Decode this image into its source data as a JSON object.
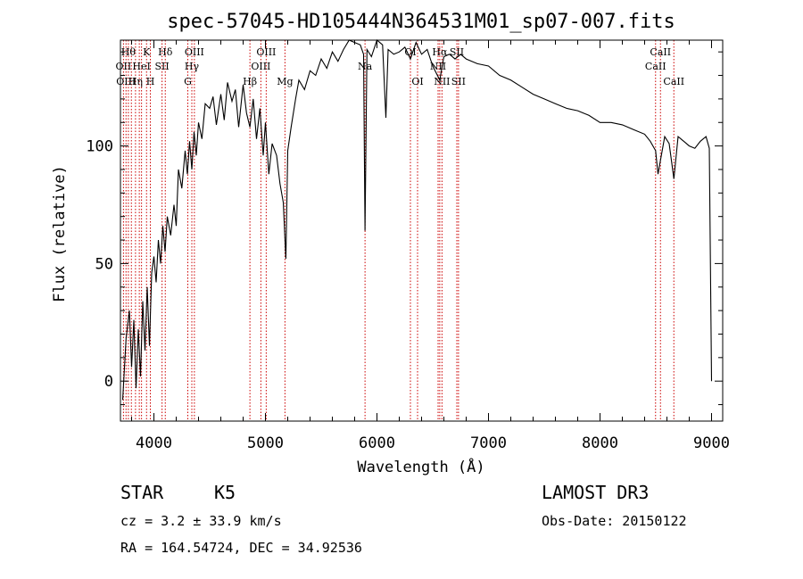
{
  "chart_data": {
    "type": "line",
    "title": "spec-57045-HD105444N364531M01_sp07-007.fits",
    "xlabel": "Wavelength (Å)",
    "ylabel": "Flux (relative)",
    "xlim": [
      3700,
      9100
    ],
    "ylim": [
      -17,
      145
    ],
    "xticks": [
      {
        "value": 4000,
        "label": "4000"
      },
      {
        "value": 5000,
        "label": "5000"
      },
      {
        "value": 6000,
        "label": "6000"
      },
      {
        "value": 7000,
        "label": "7000"
      },
      {
        "value": 8000,
        "label": "8000"
      },
      {
        "value": 9000,
        "label": "9000"
      }
    ],
    "yticks": [
      {
        "value": 0,
        "label": "0"
      },
      {
        "value": 50,
        "label": "50"
      },
      {
        "value": 100,
        "label": "100"
      }
    ],
    "series": [
      {
        "name": "spectrum",
        "x": [
          3720,
          3750,
          3780,
          3800,
          3820,
          3840,
          3860,
          3880,
          3900,
          3920,
          3940,
          3960,
          3980,
          4000,
          4020,
          4040,
          4060,
          4080,
          4100,
          4120,
          4150,
          4180,
          4200,
          4220,
          4250,
          4280,
          4300,
          4320,
          4340,
          4360,
          4380,
          4400,
          4430,
          4460,
          4500,
          4530,
          4560,
          4600,
          4630,
          4660,
          4700,
          4730,
          4760,
          4800,
          4830,
          4861,
          4890,
          4920,
          4950,
          4980,
          5000,
          5030,
          5060,
          5100,
          5130,
          5160,
          5183,
          5200,
          5230,
          5270,
          5300,
          5350,
          5400,
          5450,
          5500,
          5550,
          5600,
          5650,
          5700,
          5750,
          5800,
          5850,
          5880,
          5893,
          5910,
          5950,
          6000,
          6050,
          6080,
          6100,
          6150,
          6200,
          6250,
          6300,
          6350,
          6400,
          6450,
          6500,
          6563,
          6600,
          6650,
          6700,
          6750,
          6800,
          6900,
          7000,
          7100,
          7200,
          7300,
          7400,
          7500,
          7600,
          7700,
          7800,
          7900,
          8000,
          8100,
          8200,
          8300,
          8400,
          8450,
          8498,
          8520,
          8542,
          8580,
          8620,
          8662,
          8700,
          8750,
          8800,
          8850,
          8900,
          8950,
          8980,
          9000
        ],
        "y": [
          -8,
          18,
          30,
          6,
          26,
          -3,
          22,
          2,
          34,
          13,
          40,
          15,
          46,
          53,
          42,
          60,
          50,
          66,
          55,
          70,
          62,
          75,
          66,
          90,
          82,
          98,
          88,
          102,
          90,
          106,
          96,
          110,
          103,
          118,
          116,
          121,
          109,
          122,
          111,
          127,
          119,
          124,
          108,
          126,
          114,
          108,
          120,
          103,
          116,
          96,
          110,
          88,
          101,
          96,
          84,
          76,
          52,
          98,
          108,
          120,
          128,
          124,
          132,
          130,
          137,
          133,
          140,
          136,
          141,
          146,
          144,
          143,
          139,
          64,
          141,
          138,
          146,
          143,
          112,
          141,
          139,
          140,
          142,
          137,
          144,
          139,
          141,
          134,
          128,
          138,
          139,
          137,
          139,
          137,
          135,
          134,
          130,
          128,
          125,
          122,
          120,
          118,
          116,
          115,
          113,
          110,
          110,
          109,
          107,
          105,
          102,
          98,
          88,
          94,
          104,
          101,
          86,
          104,
          102,
          100,
          99,
          102,
          104,
          99,
          0
        ]
      }
    ],
    "lines": [
      {
        "wl": 3727,
        "label": "OII",
        "row": 2
      },
      {
        "wl": 3750,
        "label": "OIII",
        "row": 3
      },
      {
        "wl": 3771,
        "label": "Hθ",
        "row": 1
      },
      {
        "wl": 3798,
        "label": "",
        "row": 1
      },
      {
        "wl": 3835,
        "label": "Hη",
        "row": 3
      },
      {
        "wl": 3869,
        "label": "",
        "row": 2
      },
      {
        "wl": 3889,
        "label": "HeI",
        "row": 2
      },
      {
        "wl": 3934,
        "label": "K",
        "row": 1
      },
      {
        "wl": 3968,
        "label": "H",
        "row": 3
      },
      {
        "wl": 4073,
        "label": "SII",
        "row": 2
      },
      {
        "wl": 4102,
        "label": "Hδ",
        "row": 1
      },
      {
        "wl": 4304,
        "label": "G",
        "row": 3
      },
      {
        "wl": 4340,
        "label": "Hγ",
        "row": 2
      },
      {
        "wl": 4363,
        "label": "OIII",
        "row": 1
      },
      {
        "wl": 4861,
        "label": "Hβ",
        "row": 3
      },
      {
        "wl": 4959,
        "label": "OIII",
        "row": 2
      },
      {
        "wl": 5007,
        "label": "OIII",
        "row": 1
      },
      {
        "wl": 5175,
        "label": "Mg",
        "row": 3
      },
      {
        "wl": 5893,
        "label": "Na",
        "row": 2
      },
      {
        "wl": 6300,
        "label": "OI",
        "row": 1
      },
      {
        "wl": 6364,
        "label": "OI",
        "row": 3
      },
      {
        "wl": 6548,
        "label": "NII",
        "row": 2
      },
      {
        "wl": 6563,
        "label": "Hα",
        "row": 1
      },
      {
        "wl": 6583,
        "label": "NII",
        "row": 3
      },
      {
        "wl": 6716,
        "label": "SII",
        "row": 1
      },
      {
        "wl": 6731,
        "label": "SII",
        "row": 3
      },
      {
        "wl": 8498,
        "label": "CaII",
        "row": 2
      },
      {
        "wl": 8542,
        "label": "CaII",
        "row": 1
      },
      {
        "wl": 8662,
        "label": "CaII",
        "row": 3
      }
    ],
    "line_color": "#cc0000"
  },
  "info": {
    "class_label": "STAR",
    "subclass": "K5",
    "survey": "LAMOST DR3",
    "cz": "cz = 3.2 ± 33.9 km/s",
    "obs_date": "Obs-Date: 20150122",
    "coords": "RA = 164.54724, DEC =  34.92536"
  }
}
